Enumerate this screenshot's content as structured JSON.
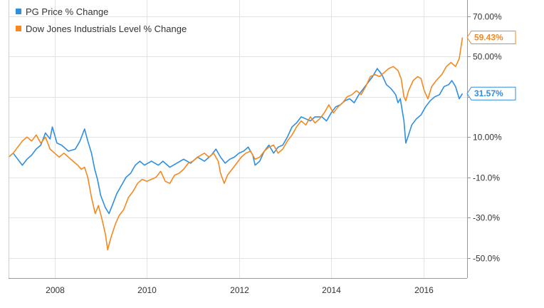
{
  "chart_data": {
    "type": "line",
    "title": "",
    "xlabel": "",
    "ylabel": "",
    "xlim": [
      2007.0,
      2016.95
    ],
    "ylim": [
      -60,
      78
    ],
    "grid": true,
    "legend_position": "top-left",
    "x_ticks": [
      {
        "value": 2008,
        "label": "2008"
      },
      {
        "value": 2010,
        "label": "2010"
      },
      {
        "value": 2012,
        "label": "2012"
      },
      {
        "value": 2014,
        "label": "2014"
      },
      {
        "value": 2016,
        "label": "2016"
      }
    ],
    "y_ticks": [
      {
        "value": 70,
        "label": "70.00%"
      },
      {
        "value": 50,
        "label": "50.00%"
      },
      {
        "value": 30,
        "label": ""
      },
      {
        "value": 10,
        "label": "10.00%"
      },
      {
        "value": -10,
        "label": "-10.0%"
      },
      {
        "value": -30,
        "label": "-30.0%"
      },
      {
        "value": -50,
        "label": "-50.0%"
      }
    ],
    "series": [
      {
        "name": "PG Price % Change",
        "color": "#2e8ee2",
        "end_label": "31.57%",
        "end_value": 31.57,
        "points": [
          [
            2007.0,
            0
          ],
          [
            2007.1,
            2
          ],
          [
            2007.2,
            -1
          ],
          [
            2007.3,
            -4
          ],
          [
            2007.4,
            -1
          ],
          [
            2007.5,
            1
          ],
          [
            2007.6,
            4
          ],
          [
            2007.7,
            6
          ],
          [
            2007.8,
            12
          ],
          [
            2007.9,
            9
          ],
          [
            2007.95,
            15
          ],
          [
            2008.05,
            7
          ],
          [
            2008.15,
            6
          ],
          [
            2008.3,
            3
          ],
          [
            2008.45,
            4
          ],
          [
            2008.55,
            8
          ],
          [
            2008.65,
            14
          ],
          [
            2008.72,
            8
          ],
          [
            2008.8,
            2
          ],
          [
            2008.87,
            -6
          ],
          [
            2008.93,
            -11
          ],
          [
            2009.0,
            -19
          ],
          [
            2009.1,
            -25
          ],
          [
            2009.18,
            -28
          ],
          [
            2009.25,
            -24
          ],
          [
            2009.35,
            -18
          ],
          [
            2009.45,
            -14
          ],
          [
            2009.55,
            -10
          ],
          [
            2009.65,
            -8
          ],
          [
            2009.75,
            -4
          ],
          [
            2009.85,
            -2
          ],
          [
            2009.95,
            -4
          ],
          [
            2010.1,
            -2
          ],
          [
            2010.25,
            -4
          ],
          [
            2010.35,
            -2
          ],
          [
            2010.5,
            -5
          ],
          [
            2010.65,
            -3
          ],
          [
            2010.8,
            -1
          ],
          [
            2010.95,
            -3
          ],
          [
            2011.1,
            0
          ],
          [
            2011.25,
            -2
          ],
          [
            2011.4,
            1
          ],
          [
            2011.5,
            4
          ],
          [
            2011.6,
            0
          ],
          [
            2011.7,
            -3
          ],
          [
            2011.8,
            -1
          ],
          [
            2011.9,
            0
          ],
          [
            2012.0,
            2
          ],
          [
            2012.1,
            3
          ],
          [
            2012.2,
            5
          ],
          [
            2012.3,
            1
          ],
          [
            2012.35,
            -4
          ],
          [
            2012.45,
            -2
          ],
          [
            2012.55,
            3
          ],
          [
            2012.65,
            6
          ],
          [
            2012.75,
            2
          ],
          [
            2012.85,
            5
          ],
          [
            2012.95,
            6
          ],
          [
            2013.05,
            10
          ],
          [
            2013.15,
            15
          ],
          [
            2013.25,
            17
          ],
          [
            2013.35,
            20
          ],
          [
            2013.45,
            19
          ],
          [
            2013.55,
            18
          ],
          [
            2013.65,
            20
          ],
          [
            2013.8,
            20
          ],
          [
            2013.9,
            18
          ],
          [
            2014.0,
            22
          ],
          [
            2014.1,
            25
          ],
          [
            2014.2,
            26
          ],
          [
            2014.3,
            28
          ],
          [
            2014.4,
            29
          ],
          [
            2014.5,
            27
          ],
          [
            2014.6,
            31
          ],
          [
            2014.7,
            34
          ],
          [
            2014.8,
            37
          ],
          [
            2014.9,
            40
          ],
          [
            2015.0,
            44
          ],
          [
            2015.1,
            41
          ],
          [
            2015.2,
            36
          ],
          [
            2015.3,
            34
          ],
          [
            2015.4,
            31
          ],
          [
            2015.45,
            27
          ],
          [
            2015.5,
            29
          ],
          [
            2015.58,
            18
          ],
          [
            2015.62,
            7
          ],
          [
            2015.68,
            11
          ],
          [
            2015.75,
            16
          ],
          [
            2015.85,
            19
          ],
          [
            2015.95,
            21
          ],
          [
            2016.05,
            25
          ],
          [
            2016.15,
            28
          ],
          [
            2016.25,
            30
          ],
          [
            2016.35,
            31
          ],
          [
            2016.45,
            35
          ],
          [
            2016.55,
            36
          ],
          [
            2016.62,
            38
          ],
          [
            2016.7,
            35
          ],
          [
            2016.78,
            29
          ],
          [
            2016.85,
            31.57
          ]
        ]
      },
      {
        "name": "Dow Jones Industrials Level % Change",
        "color": "#f5881f",
        "end_label": "59.43%",
        "end_value": 59.43,
        "points": [
          [
            2007.0,
            0
          ],
          [
            2007.1,
            2
          ],
          [
            2007.2,
            5
          ],
          [
            2007.3,
            8
          ],
          [
            2007.4,
            10
          ],
          [
            2007.5,
            8
          ],
          [
            2007.6,
            11
          ],
          [
            2007.7,
            7
          ],
          [
            2007.8,
            10
          ],
          [
            2007.9,
            4
          ],
          [
            2008.0,
            2
          ],
          [
            2008.1,
            0
          ],
          [
            2008.2,
            2
          ],
          [
            2008.3,
            0
          ],
          [
            2008.4,
            -2
          ],
          [
            2008.5,
            -4
          ],
          [
            2008.58,
            -6
          ],
          [
            2008.65,
            -5
          ],
          [
            2008.72,
            -10
          ],
          [
            2008.8,
            -20
          ],
          [
            2008.88,
            -28
          ],
          [
            2008.95,
            -24
          ],
          [
            2009.02,
            -30
          ],
          [
            2009.1,
            -38
          ],
          [
            2009.15,
            -46
          ],
          [
            2009.22,
            -40
          ],
          [
            2009.32,
            -33
          ],
          [
            2009.4,
            -29
          ],
          [
            2009.5,
            -26
          ],
          [
            2009.6,
            -20
          ],
          [
            2009.7,
            -17
          ],
          [
            2009.8,
            -13
          ],
          [
            2009.9,
            -11
          ],
          [
            2010.0,
            -12
          ],
          [
            2010.1,
            -11
          ],
          [
            2010.2,
            -10
          ],
          [
            2010.3,
            -7
          ],
          [
            2010.4,
            -12
          ],
          [
            2010.5,
            -13
          ],
          [
            2010.6,
            -9
          ],
          [
            2010.7,
            -8
          ],
          [
            2010.8,
            -6
          ],
          [
            2010.9,
            -3
          ],
          [
            2011.0,
            -2
          ],
          [
            2011.1,
            0
          ],
          [
            2011.25,
            2
          ],
          [
            2011.35,
            0
          ],
          [
            2011.45,
            2
          ],
          [
            2011.55,
            -2
          ],
          [
            2011.6,
            -8
          ],
          [
            2011.68,
            -13
          ],
          [
            2011.75,
            -9
          ],
          [
            2011.85,
            -6
          ],
          [
            2011.95,
            -3
          ],
          [
            2012.05,
            0
          ],
          [
            2012.15,
            2
          ],
          [
            2012.25,
            3
          ],
          [
            2012.35,
            -1
          ],
          [
            2012.45,
            0
          ],
          [
            2012.55,
            3
          ],
          [
            2012.65,
            5
          ],
          [
            2012.75,
            6
          ],
          [
            2012.85,
            2
          ],
          [
            2012.95,
            4
          ],
          [
            2013.05,
            8
          ],
          [
            2013.15,
            11
          ],
          [
            2013.25,
            15
          ],
          [
            2013.35,
            18
          ],
          [
            2013.45,
            16
          ],
          [
            2013.55,
            20
          ],
          [
            2013.65,
            17
          ],
          [
            2013.75,
            19
          ],
          [
            2013.85,
            22
          ],
          [
            2013.95,
            26
          ],
          [
            2014.05,
            22
          ],
          [
            2014.15,
            25
          ],
          [
            2014.25,
            27
          ],
          [
            2014.35,
            30
          ],
          [
            2014.45,
            31
          ],
          [
            2014.55,
            33
          ],
          [
            2014.65,
            31
          ],
          [
            2014.75,
            35
          ],
          [
            2014.85,
            40
          ],
          [
            2014.95,
            41
          ],
          [
            2015.05,
            40
          ],
          [
            2015.15,
            42
          ],
          [
            2015.25,
            44
          ],
          [
            2015.35,
            45
          ],
          [
            2015.45,
            43
          ],
          [
            2015.52,
            39
          ],
          [
            2015.58,
            30
          ],
          [
            2015.62,
            28
          ],
          [
            2015.68,
            33
          ],
          [
            2015.78,
            38
          ],
          [
            2015.88,
            40
          ],
          [
            2015.95,
            39
          ],
          [
            2016.02,
            33
          ],
          [
            2016.1,
            29
          ],
          [
            2016.18,
            35
          ],
          [
            2016.28,
            38
          ],
          [
            2016.4,
            41
          ],
          [
            2016.5,
            45
          ],
          [
            2016.6,
            47
          ],
          [
            2016.7,
            45
          ],
          [
            2016.78,
            49
          ],
          [
            2016.85,
            59.43
          ]
        ]
      }
    ]
  }
}
